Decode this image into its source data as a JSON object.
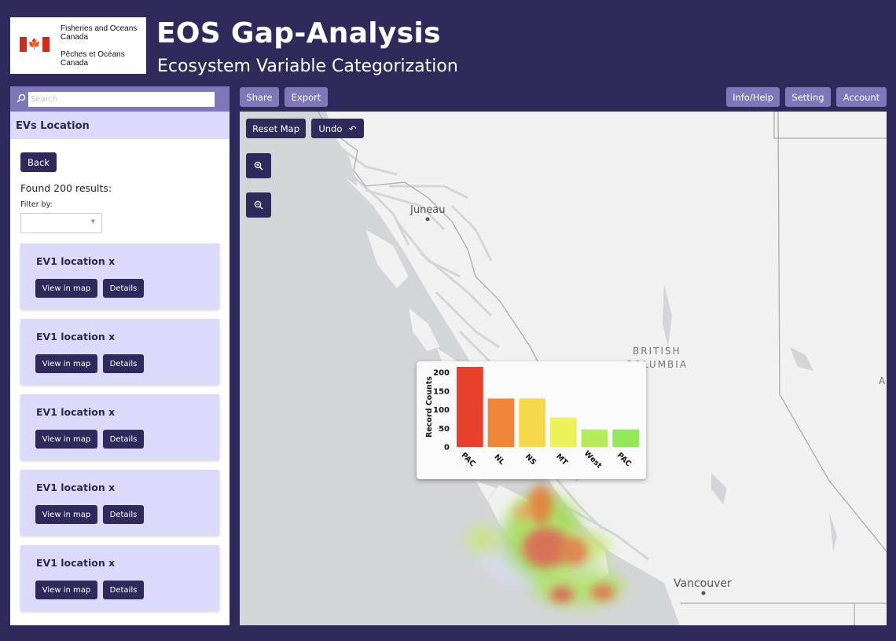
{
  "header": {
    "org_en_line1": "Fisheries and Oceans",
    "org_en_line2": "Canada",
    "org_fr_line1": "Pêches et Océans",
    "org_fr_line2": "Canada",
    "title": "EOS Gap-Analysis",
    "subtitle": "Ecosystem Variable Categorization"
  },
  "sidebar": {
    "search_placeholder": "Search",
    "section_title": "EVs Location",
    "back_label": "Back",
    "results_text": "Found 200 results:",
    "filter_label": "Filter by:",
    "filter_value": "",
    "cards": [
      {
        "title": "EV1 location x",
        "view_label": "View in map",
        "details_label": "Details"
      },
      {
        "title": "EV1 location x",
        "view_label": "View in map",
        "details_label": "Details"
      },
      {
        "title": "EV1 location x",
        "view_label": "View in map",
        "details_label": "Details"
      },
      {
        "title": "EV1 location x",
        "view_label": "View in map",
        "details_label": "Details"
      },
      {
        "title": "EV1 location x",
        "view_label": "View in map",
        "details_label": "Details"
      }
    ]
  },
  "toolbar": {
    "share_label": "Share",
    "export_label": "Export",
    "info_label": "Info/Help",
    "setting_label": "Setting",
    "account_label": "Account"
  },
  "map": {
    "reset_label": "Reset Map",
    "undo_label": "Undo",
    "zoom_in_icon": "zoom-in-icon",
    "zoom_out_icon": "zoom-out-icon",
    "places": {
      "juneau": "Juneau",
      "bc_line1": "BRITISH",
      "bc_line2": "COLUMBIA",
      "vancouver": "Vancouver",
      "edge_a": "A"
    }
  },
  "colors": {
    "brand_dark": "#2f2a5b",
    "brand_light": "#7e78bb",
    "panel_light": "#dcdafa"
  },
  "chart_data": {
    "type": "bar",
    "categories": [
      "PAC",
      "NL",
      "NS",
      "MT",
      "West",
      "PAC"
    ],
    "values": [
      215,
      130,
      130,
      79,
      47,
      47
    ],
    "colors": [
      "#e8402a",
      "#f08638",
      "#f6d84b",
      "#ecf25a",
      "#b4ec5a",
      "#94e85c"
    ],
    "ylabel": "Record Counts",
    "ylim": [
      0,
      215
    ],
    "yticks": [
      0,
      50,
      100,
      150,
      200
    ],
    "grid": false
  }
}
